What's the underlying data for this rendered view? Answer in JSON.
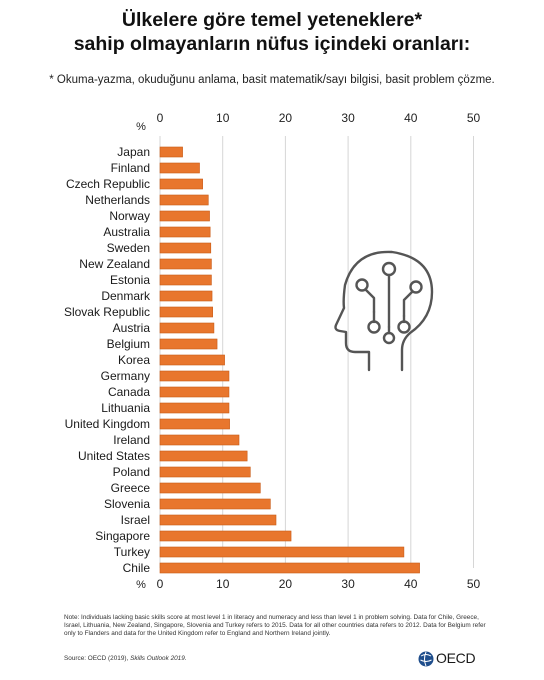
{
  "header": {
    "title_line1": "Ülkelere göre temel yeteneklere*",
    "title_line2": "sahip olmayanların nüfus içindeki oranları:",
    "subtitle": "* Okuma-yazma, okuduğunu anlama, basit matematik/sayı bilgisi, basit problem çözme."
  },
  "chart_data": {
    "type": "bar",
    "orientation": "horizontal",
    "categories": [
      "Japan",
      "Finland",
      "Czech Republic",
      "Netherlands",
      "Norway",
      "Australia",
      "Sweden",
      "New Zealand",
      "Estonia",
      "Denmark",
      "Slovak Republic",
      "Austria",
      "Belgium",
      "Korea",
      "Germany",
      "Canada",
      "Lithuania",
      "United Kingdom",
      "Ireland",
      "United States",
      "Poland",
      "Greece",
      "Slovenia",
      "Israel",
      "Singapore",
      "Turkey",
      "Chile"
    ],
    "values": [
      3.6,
      6.3,
      6.8,
      7.7,
      7.9,
      8.0,
      8.1,
      8.2,
      8.2,
      8.3,
      8.4,
      8.6,
      9.1,
      10.3,
      11.0,
      11.0,
      11.0,
      11.1,
      12.6,
      13.9,
      14.4,
      16.0,
      17.6,
      18.5,
      20.9,
      38.9,
      41.4
    ],
    "axis_unit": "%",
    "xlim": [
      0,
      50
    ],
    "ticks": [
      0,
      10,
      20,
      30,
      40,
      50
    ],
    "grid": true,
    "bar_color": "#e8762d"
  },
  "footer": {
    "note": "Note: Individuals lacking basic skills score at most level 1 in literacy and numeracy and less than level 1 in problem solving. Data for Chile, Greece, Israel, Lithuania, New Zealand, Singapore, Slovenia and Turkey refers to 2015. Data for all other countries data refers to 2012. Data for Belgium refer only to Flanders and data for the United Kingdom refer to England and Northern Ireland jointly.",
    "source_prefix": "Source: OECD (2019), ",
    "source_title": "Skills Outlook 2019.",
    "logo_text": "OECD",
    "icon": "head-circuit-icon"
  }
}
